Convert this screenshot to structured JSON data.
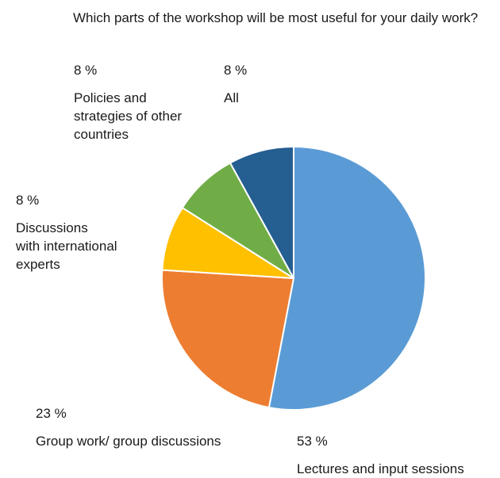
{
  "chart_data": {
    "type": "pie",
    "title": "Which parts of the workshop will be most useful for your daily work?",
    "slices": [
      {
        "label": "Lectures and input sessions",
        "value": 53,
        "display": "53 %",
        "color": "#5b9bd5"
      },
      {
        "label": "Group work/ group discussions",
        "value": 23,
        "display": "23 %",
        "color": "#ed7d31"
      },
      {
        "label": "Discussions\nwith international\nexperts",
        "value": 8,
        "display": "8 %",
        "color": "#ffc000"
      },
      {
        "label": "Policies and\nstrategies of other\ncountries",
        "value": 8,
        "display": "8 %",
        "color": "#70ad47"
      },
      {
        "label": "All",
        "value": 8,
        "display": "8 %",
        "color": "#255e91"
      }
    ],
    "start_angle": "12 o'clock",
    "direction": "clockwise",
    "legend": "none"
  }
}
